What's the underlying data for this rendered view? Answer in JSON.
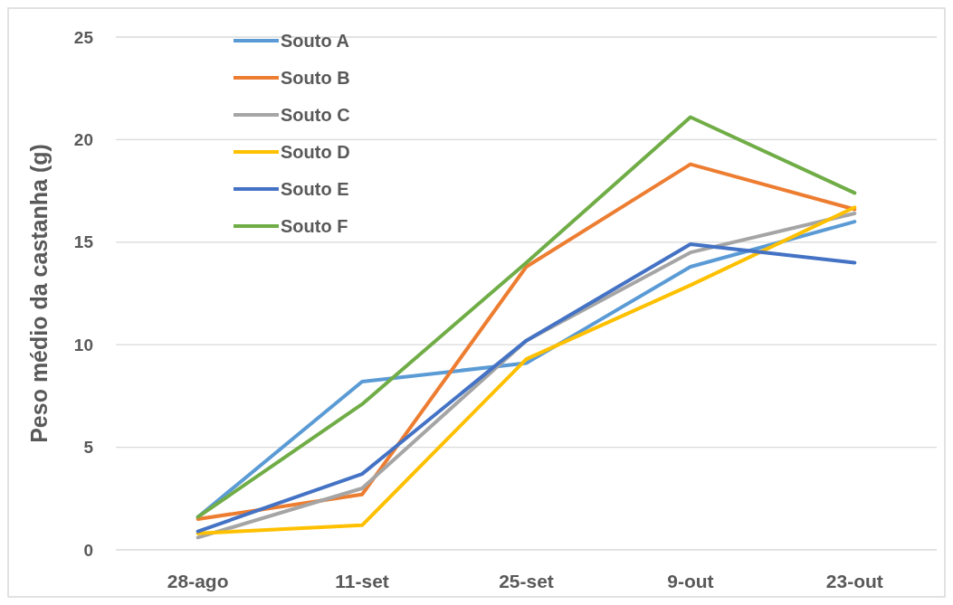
{
  "chart_data": {
    "type": "line",
    "ylabel": "Peso médio da castanha (g)",
    "categories": [
      "28-ago",
      "11-set",
      "25-set",
      "9-out",
      "23-out"
    ],
    "ylim": [
      0,
      25
    ],
    "yticks": [
      0,
      5,
      10,
      15,
      20,
      25
    ],
    "grid": "y",
    "legend": "top left",
    "marker": "none",
    "line_style": "solid",
    "series": [
      {
        "name": "Souto A",
        "color": "#5b9bd5",
        "values": [
          1.6,
          8.2,
          9.1,
          13.8,
          16.0
        ]
      },
      {
        "name": "Souto B",
        "color": "#ed7d31",
        "values": [
          1.5,
          2.7,
          13.8,
          18.8,
          16.6
        ]
      },
      {
        "name": "Souto C",
        "color": "#a5a5a5",
        "values": [
          0.6,
          3.0,
          10.2,
          14.5,
          16.4
        ]
      },
      {
        "name": "Souto D",
        "color": "#ffc000",
        "values": [
          0.8,
          1.2,
          9.3,
          12.9,
          16.7
        ]
      },
      {
        "name": "Souto E",
        "color": "#4472c4",
        "values": [
          0.9,
          3.7,
          10.2,
          14.9,
          14.0
        ]
      },
      {
        "name": "Souto F",
        "color": "#70ad47",
        "values": [
          1.6,
          7.1,
          14.0,
          21.1,
          17.4
        ]
      }
    ]
  }
}
